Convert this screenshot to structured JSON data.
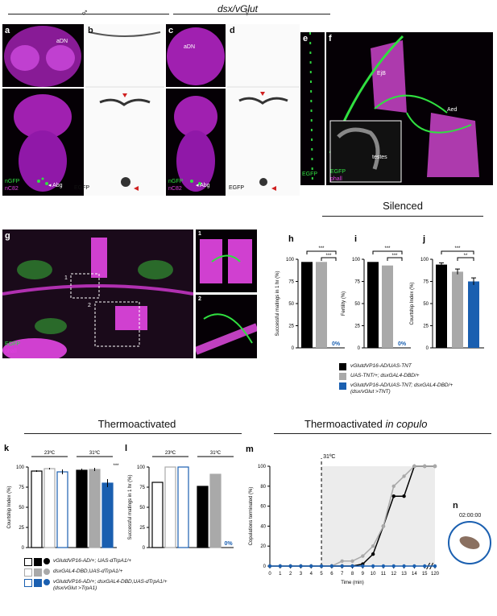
{
  "title": "dsx/vGlut",
  "sex": {
    "male": "♂",
    "female": "♀"
  },
  "panels": {
    "a": {
      "letter": "a",
      "aDN": "aDN",
      "nGFP": "nGFP",
      "nC82": "nC82",
      "Abg": "◂ Abg"
    },
    "b": {
      "letter": "b",
      "EGFP": "EGFP"
    },
    "c": {
      "letter": "c",
      "aDN": "aDN",
      "nGFP": "nGFP",
      "nC82": "nC82",
      "Abg": "◂ Abg"
    },
    "d": {
      "letter": "d",
      "EGFP": "EGFP"
    },
    "e": {
      "letter": "e",
      "EGFP": "EGFP"
    },
    "f": {
      "letter": "f",
      "EjB": "EjB",
      "Aed": "Aed",
      "testes": "testes",
      "EGFP": "EGFP",
      "phall": "phall"
    },
    "g": {
      "letter": "g",
      "EGFP": "EGFP",
      "phall": "phall",
      "box1": "1",
      "box2": "2",
      "inset1": "1",
      "inset2": "2"
    }
  },
  "headers": {
    "silenced": "Silenced",
    "thermo": "Thermoactivated",
    "thermo_copulo": "Thermoactivated",
    "in_copulo": "in copulo"
  },
  "chart_data": [
    {
      "id": "h",
      "type": "bar",
      "ylabel": "Successful matings in 1 hr (%)",
      "ylim": [
        0,
        100
      ],
      "yticks": [
        0,
        25,
        50,
        75,
        100
      ],
      "values": [
        97,
        97,
        0
      ],
      "colors": [
        "#000000",
        "#a9a9a9",
        "#1a5fb0"
      ],
      "zero_label": "0%",
      "sig": [
        "***",
        "***"
      ]
    },
    {
      "id": "i",
      "type": "bar",
      "ylabel": "Fertility (%)",
      "ylim": [
        0,
        100
      ],
      "yticks": [
        0,
        25,
        50,
        75,
        100
      ],
      "values": [
        97,
        93,
        0
      ],
      "colors": [
        "#000000",
        "#a9a9a9",
        "#1a5fb0"
      ],
      "zero_label": "0%",
      "sig": [
        "***",
        "***"
      ]
    },
    {
      "id": "j",
      "type": "bar",
      "ylabel": "Courtship Index (%)",
      "ylim": [
        0,
        100
      ],
      "yticks": [
        0,
        25,
        50,
        75,
        100
      ],
      "values": [
        94,
        86,
        75
      ],
      "errors": [
        2,
        3,
        4
      ],
      "colors": [
        "#000000",
        "#a9a9a9",
        "#1a5fb0"
      ],
      "sig": [
        "***",
        "**"
      ]
    },
    {
      "id": "k",
      "type": "bar",
      "ylabel": "Courtship Index (%)",
      "ylim": [
        0,
        100
      ],
      "yticks": [
        0,
        25,
        50,
        75,
        100
      ],
      "groups": [
        "23ºC",
        "31ºC"
      ],
      "values": [
        95,
        98,
        94,
        96,
        97,
        80
      ],
      "errors": [
        1,
        1,
        3,
        2,
        2,
        5
      ],
      "fills": [
        "#ffffff",
        "#ffffff",
        "#ffffff",
        "#000000",
        "#a9a9a9",
        "#1a5fb0"
      ],
      "strokes": [
        "#000000",
        "#a9a9a9",
        "#1a5fb0",
        "#000000",
        "#a9a9a9",
        "#1a5fb0"
      ],
      "sig": "***"
    },
    {
      "id": "l",
      "type": "bar",
      "ylabel": "Successful matings in 1 hr (%)",
      "ylim": [
        0,
        100
      ],
      "yticks": [
        0,
        25,
        50,
        75,
        100
      ],
      "groups": [
        "23ºC",
        "31ºC"
      ],
      "values": [
        81,
        100,
        100,
        76,
        91,
        0
      ],
      "fills": [
        "#ffffff",
        "#ffffff",
        "#ffffff",
        "#000000",
        "#a9a9a9",
        "#1a5fb0"
      ],
      "strokes": [
        "#000000",
        "#a9a9a9",
        "#1a5fb0",
        "#000000",
        "#a9a9a9",
        "#1a5fb0"
      ],
      "sig": "***",
      "zero_label": "0%"
    },
    {
      "id": "m",
      "type": "line",
      "xlabel": "Time (min)",
      "ylabel": "Copulations terminated (%)",
      "ylim": [
        0,
        100
      ],
      "yticks": [
        0,
        20,
        40,
        60,
        80,
        100
      ],
      "xticks": [
        "0",
        "1",
        "2",
        "3",
        "4",
        "5",
        "6",
        "7",
        "8",
        "9",
        "10",
        "11",
        "12",
        "13",
        "14",
        "15",
        "120"
      ],
      "annotation": "31ºC",
      "shade_from": 5,
      "series": [
        {
          "color": "#000000",
          "values": [
            0,
            0,
            0,
            0,
            0,
            0,
            0,
            0,
            0,
            2,
            12,
            40,
            70,
            70,
            100,
            100,
            100
          ]
        },
        {
          "color": "#a9a9a9",
          "values": [
            0,
            0,
            0,
            0,
            0,
            0,
            0,
            5,
            5,
            10,
            20,
            40,
            80,
            90,
            100,
            100,
            100
          ]
        },
        {
          "color": "#1a5fb0",
          "values": [
            0,
            0,
            0,
            0,
            0,
            0,
            0,
            0,
            0,
            0,
            0,
            0,
            0,
            0,
            0,
            0,
            0
          ]
        }
      ]
    }
  ],
  "legend_silenced": [
    {
      "color": "#000000",
      "text": "vGlutdVP16-AD/UAS-TNT"
    },
    {
      "color": "#a9a9a9",
      "text": "UAS-TNT/+; dsxGAL4-DBD/+"
    },
    {
      "color": "#1a5fb0",
      "text": "vGlutdVP16-AD/UAS-TNT; dsxGAL4-DBD/+",
      "sub": "(dsx/vGlut >TNT)"
    }
  ],
  "legend_thermo": [
    {
      "color": "#000000",
      "text": "vGlutdVP16-AD/+; UAS-dTrpA1/+"
    },
    {
      "color": "#a9a9a9",
      "text": "dsxGAL4-DBD,UAS-dTrpA1/+"
    },
    {
      "color": "#1a5fb0",
      "text": "vGlutdVP16-AD/+; dsxGAL4-DBD,UAS-dTrpA1/+",
      "sub": "(dsx/vGlut >TrpA1)"
    }
  ],
  "panel_n": {
    "letter": "n",
    "time": "02:00:00"
  }
}
